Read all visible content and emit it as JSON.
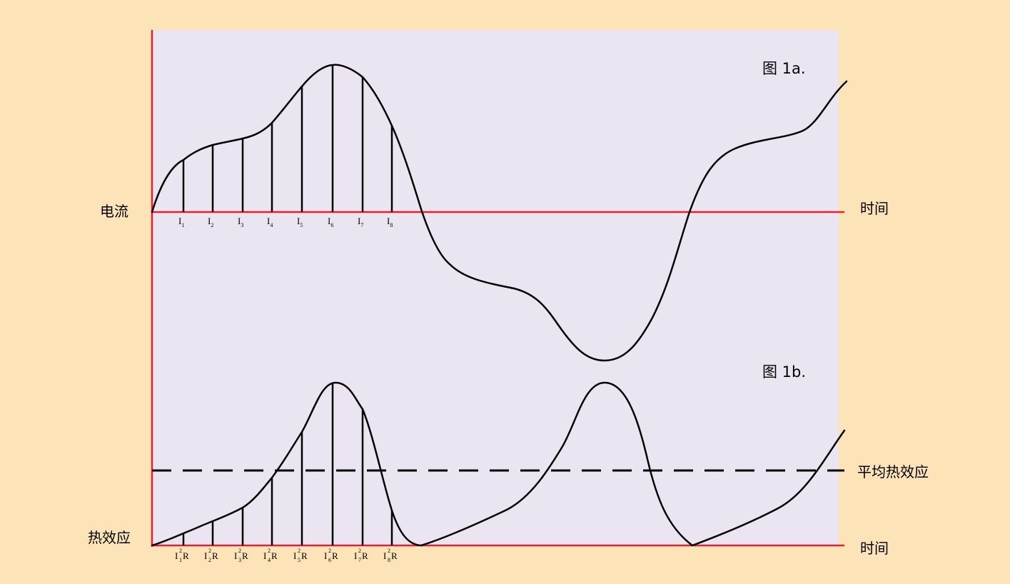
{
  "figure": {
    "panel_a": {
      "label": "图 1a.",
      "y_axis_label": "电流",
      "x_axis_label": "时间",
      "sample_labels": [
        {
          "base": "I",
          "sub": "1"
        },
        {
          "base": "I",
          "sub": "2"
        },
        {
          "base": "I",
          "sub": "3"
        },
        {
          "base": "I",
          "sub": "4"
        },
        {
          "base": "I",
          "sub": "5"
        },
        {
          "base": "I",
          "sub": "6"
        },
        {
          "base": "I",
          "sub": "7"
        },
        {
          "base": "I",
          "sub": "8"
        }
      ]
    },
    "panel_b": {
      "label": "图 1b.",
      "y_axis_label": "热效应",
      "x_axis_label": "时间",
      "average_label": "平均热效应",
      "sample_labels": [
        {
          "base": "I",
          "sup": "2",
          "sub": "1",
          "tail": "R"
        },
        {
          "base": "I",
          "sup": "2",
          "sub": "2",
          "tail": "R"
        },
        {
          "base": "I",
          "sup": "2",
          "sub": "3",
          "tail": "R"
        },
        {
          "base": "I",
          "sup": "2",
          "sub": "4",
          "tail": "R"
        },
        {
          "base": "I",
          "sup": "2",
          "sub": "5",
          "tail": "R"
        },
        {
          "base": "I",
          "sup": "2",
          "sub": "6",
          "tail": "R"
        },
        {
          "base": "I",
          "sup": "2",
          "sub": "7",
          "tail": "R"
        },
        {
          "base": "I",
          "sup": "2",
          "sub": "8",
          "tail": "R"
        }
      ]
    },
    "colors": {
      "page_background": "#fde3b8",
      "plot_background": "#ebe5f1",
      "axis": "#e8202a",
      "curve": "#000000"
    }
  }
}
